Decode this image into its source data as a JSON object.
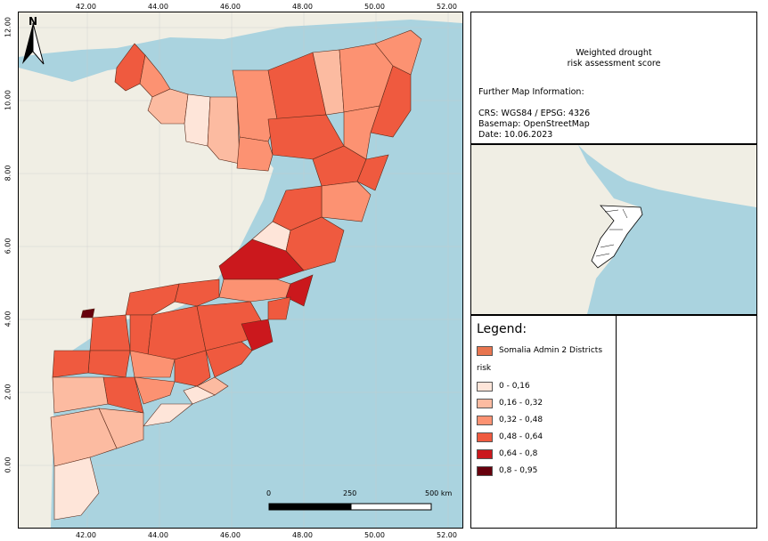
{
  "map": {
    "x_ticks": [
      "42.00",
      "44.00",
      "46.00",
      "48.00",
      "50.00",
      "52.00"
    ],
    "y_ticks": [
      "12.00",
      "10.00",
      "8.00",
      "6.00",
      "4.00",
      "2.00",
      "0.00"
    ],
    "north_label": "N",
    "scale": {
      "zero": "0",
      "mid": "250",
      "max": "500 km"
    }
  },
  "info": {
    "title_line1": "Weighted drought",
    "title_line2": "risk assessment score",
    "further_label": "Further Map Information:",
    "crs": "CRS: WGS84 / EPSG: 4326",
    "basemap": "Basemap: OpenStreetMap",
    "date": "Date: 10.06.2023"
  },
  "legend": {
    "title": "Legend:",
    "layer_name": "Somalia Admin 2 Districts",
    "layer_color": "#e8754f",
    "field": "risk",
    "classes": [
      {
        "label": "0 - 0,16",
        "color": "#fee5d9"
      },
      {
        "label": "0,16 - 0,32",
        "color": "#fcbba1"
      },
      {
        "label": "0,32 - 0,48",
        "color": "#fc9272"
      },
      {
        "label": "0,48 - 0,64",
        "color": "#ef5a3f"
      },
      {
        "label": "0,64 - 0,8",
        "color": "#cb181d"
      },
      {
        "label": "0,8 - 0,95",
        "color": "#67000d"
      }
    ]
  },
  "colors": {
    "sea": "#aad3df",
    "land": "#f0eee4"
  }
}
